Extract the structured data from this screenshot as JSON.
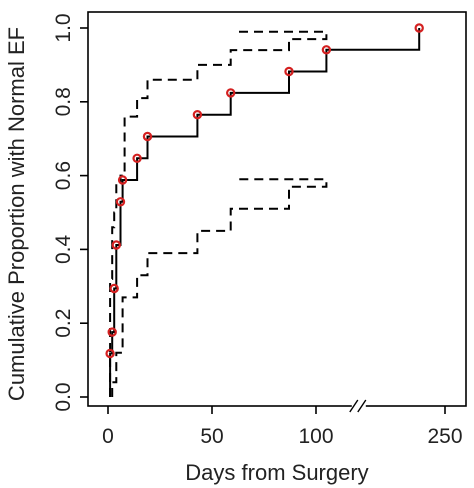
{
  "chart_data": {
    "type": "line",
    "title": "",
    "xlabel": "Days from Surgery",
    "ylabel": "Cumulative Proportion with Normal EF",
    "x_ticks": [
      {
        "value": 0,
        "label": "0"
      },
      {
        "value": 50,
        "label": "50"
      },
      {
        "value": 100,
        "label": "100"
      },
      {
        "value": 250,
        "label": "250"
      }
    ],
    "y_ticks": [
      {
        "value": 0.0,
        "label": "0.0"
      },
      {
        "value": 0.2,
        "label": "0.2"
      },
      {
        "value": 0.4,
        "label": "0.4"
      },
      {
        "value": 0.6,
        "label": "0.6"
      },
      {
        "value": 0.8,
        "label": "0.8"
      },
      {
        "value": 1.0,
        "label": "1.0"
      }
    ],
    "ylim": [
      0,
      1
    ],
    "axis_break": {
      "between": [
        110,
        120
      ]
    },
    "grid": false,
    "series": [
      {
        "role": "estimate",
        "style": "solid-step",
        "color": "#000000",
        "points": [
          [
            1,
            0
          ],
          [
            1,
            0.118
          ],
          [
            2,
            0.118
          ],
          [
            2,
            0.176
          ],
          [
            3,
            0.176
          ],
          [
            3,
            0.294
          ],
          [
            4,
            0.294
          ],
          [
            4,
            0.412
          ],
          [
            6,
            0.412
          ],
          [
            6,
            0.529
          ],
          [
            7,
            0.529
          ],
          [
            7,
            0.588
          ],
          [
            14,
            0.588
          ],
          [
            14,
            0.647
          ],
          [
            19,
            0.647
          ],
          [
            19,
            0.706
          ],
          [
            43,
            0.706
          ],
          [
            43,
            0.765
          ],
          [
            59,
            0.765
          ],
          [
            59,
            0.824
          ],
          [
            87,
            0.824
          ],
          [
            87,
            0.882
          ],
          [
            105,
            0.882
          ],
          [
            105,
            0.941
          ],
          [
            233,
            0.941
          ],
          [
            233,
            1.0
          ]
        ]
      },
      {
        "role": "upper-ci",
        "style": "dashed-step",
        "color": "#000000",
        "points": [
          [
            1,
            0
          ],
          [
            1,
            0.32
          ],
          [
            2,
            0.32
          ],
          [
            2,
            0.46
          ],
          [
            3,
            0.46
          ],
          [
            3,
            0.5
          ],
          [
            4,
            0.5
          ],
          [
            4,
            0.58
          ],
          [
            6,
            0.58
          ],
          [
            6,
            0.6
          ],
          [
            8,
            0.6
          ],
          [
            8,
            0.76
          ],
          [
            14,
            0.76
          ],
          [
            14,
            0.81
          ],
          [
            19,
            0.81
          ],
          [
            19,
            0.86
          ],
          [
            43,
            0.86
          ],
          [
            43,
            0.9
          ],
          [
            59,
            0.9
          ],
          [
            59,
            0.94
          ],
          [
            87,
            0.94
          ],
          [
            87,
            0.97
          ],
          [
            105,
            0.97
          ],
          [
            105,
            0.99
          ],
          [
            112,
            0.99
          ]
        ]
      },
      {
        "role": "lower-ci",
        "style": "dashed-step",
        "color": "#000000",
        "points": [
          [
            2,
            0
          ],
          [
            2,
            0.04
          ],
          [
            4,
            0.04
          ],
          [
            4,
            0.12
          ],
          [
            7,
            0.12
          ],
          [
            7,
            0.27
          ],
          [
            14,
            0.27
          ],
          [
            14,
            0.33
          ],
          [
            19,
            0.33
          ],
          [
            19,
            0.39
          ],
          [
            43,
            0.39
          ],
          [
            43,
            0.45
          ],
          [
            59,
            0.45
          ],
          [
            59,
            0.51
          ],
          [
            87,
            0.51
          ],
          [
            87,
            0.57
          ],
          [
            105,
            0.57
          ],
          [
            105,
            0.59
          ],
          [
            112,
            0.59
          ]
        ]
      }
    ],
    "markers": {
      "color": "#d42020",
      "points": [
        [
          1,
          0.118
        ],
        [
          2,
          0.176
        ],
        [
          3,
          0.294
        ],
        [
          4,
          0.412
        ],
        [
          6,
          0.529
        ],
        [
          7,
          0.588
        ],
        [
          14,
          0.647
        ],
        [
          19,
          0.706
        ],
        [
          43,
          0.765
        ],
        [
          59,
          0.824
        ],
        [
          87,
          0.882
        ],
        [
          105,
          0.941
        ],
        [
          233,
          1.0
        ]
      ]
    }
  }
}
